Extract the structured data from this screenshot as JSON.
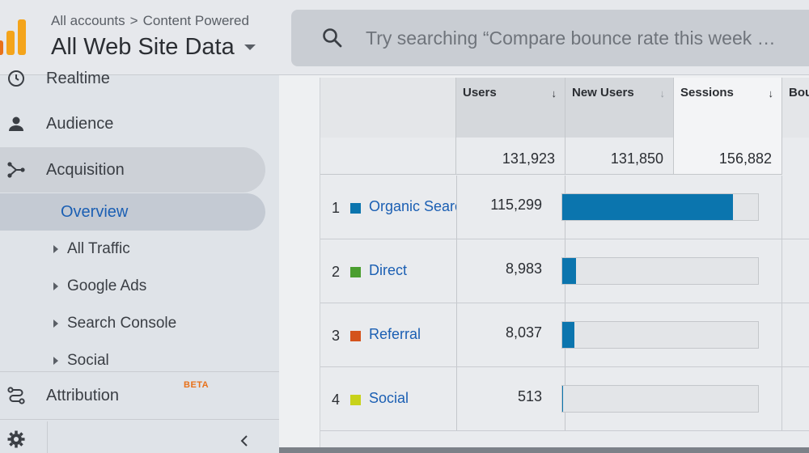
{
  "header": {
    "breadcrumb": {
      "accounts": "All accounts",
      "separator": ">",
      "property": "Content Powered"
    },
    "view_title": "All Web Site Data",
    "search": {
      "placeholder": "Try searching “Compare bounce rate this week …"
    }
  },
  "sidebar": {
    "items": [
      {
        "label": "Realtime",
        "icon": "clock-icon"
      },
      {
        "label": "Audience",
        "icon": "person-icon"
      },
      {
        "label": "Acquisition",
        "icon": "acquisition-icon"
      }
    ],
    "acquisition_sub": [
      {
        "label": "Overview"
      },
      {
        "label": "All Traffic"
      },
      {
        "label": "Google Ads"
      },
      {
        "label": "Search Console"
      },
      {
        "label": "Social"
      }
    ],
    "attribution": {
      "label": "Attribution",
      "badge": "BETA"
    }
  },
  "table": {
    "columns": [
      {
        "label": "Users",
        "arrow": "↓"
      },
      {
        "label": "New Users",
        "arrow": "↓"
      },
      {
        "label": "Sessions",
        "arrow": "↓"
      },
      {
        "label": "Bou"
      }
    ],
    "totals": {
      "users": "131,923",
      "new_users": "131,850",
      "sessions": "156,882"
    },
    "rows": [
      {
        "rank": "1",
        "source": "Organic Search",
        "users": "115,299",
        "sessions_share": 0.87,
        "color": "#0b75ae"
      },
      {
        "rank": "2",
        "source": "Direct",
        "users": "8,983",
        "sessions_share": 0.07,
        "color": "#4a9e2f"
      },
      {
        "rank": "3",
        "source": "Referral",
        "users": "8,037",
        "sessions_share": 0.06,
        "color": "#d4531c"
      },
      {
        "rank": "4",
        "source": "Social",
        "users": "513",
        "sessions_share": 0.005,
        "color": "#c8d21a"
      }
    ]
  }
}
